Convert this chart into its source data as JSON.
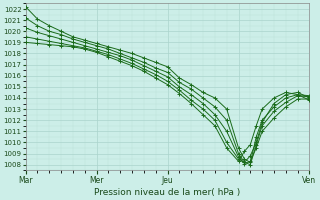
{
  "xlabel": "Pression niveau de la mer( hPa )",
  "bg_color": "#cceee8",
  "grid_color_major": "#aad4cc",
  "grid_color_minor": "#bde0d8",
  "line_color": "#1a6b1a",
  "xlim": [
    0,
    96
  ],
  "ylim": [
    1007.5,
    1022.5
  ],
  "yticks": [
    1008,
    1009,
    1010,
    1011,
    1012,
    1013,
    1014,
    1015,
    1016,
    1017,
    1018,
    1019,
    1020,
    1021,
    1022
  ],
  "xtick_positions": [
    0,
    24,
    48,
    72,
    96
  ],
  "xtick_labels": [
    "Mar",
    "Mer",
    "Jeu",
    "",
    "Ven"
  ],
  "lines": [
    [
      0,
      1022.2,
      4,
      1021.1,
      8,
      1020.5,
      12,
      1020.0,
      16,
      1019.5,
      20,
      1019.2,
      24,
      1018.9,
      28,
      1018.6,
      32,
      1018.3,
      36,
      1018.0,
      40,
      1017.6,
      44,
      1017.2,
      48,
      1016.8,
      52,
      1015.8,
      56,
      1015.2,
      60,
      1014.5,
      64,
      1014.0,
      68,
      1013.0,
      72,
      1009.5,
      74,
      1008.5,
      76,
      1008.2,
      78,
      1010.5,
      80,
      1012.0,
      84,
      1013.2,
      88,
      1014.0,
      92,
      1014.3,
      96,
      1014.2
    ],
    [
      0,
      1021.2,
      4,
      1020.5,
      8,
      1020.0,
      12,
      1019.7,
      16,
      1019.3,
      20,
      1019.0,
      24,
      1018.7,
      28,
      1018.4,
      32,
      1018.0,
      36,
      1017.6,
      40,
      1017.2,
      44,
      1016.7,
      48,
      1016.3,
      52,
      1015.4,
      56,
      1014.8,
      60,
      1014.0,
      64,
      1013.2,
      68,
      1012.0,
      72,
      1009.0,
      74,
      1008.2,
      76,
      1008.0,
      78,
      1009.8,
      80,
      1011.5,
      84,
      1012.8,
      88,
      1013.6,
      92,
      1014.2,
      96,
      1014.1
    ],
    [
      0,
      1020.3,
      4,
      1019.9,
      8,
      1019.6,
      12,
      1019.3,
      16,
      1019.0,
      20,
      1018.7,
      24,
      1018.4,
      28,
      1018.1,
      32,
      1017.8,
      36,
      1017.4,
      40,
      1016.9,
      44,
      1016.4,
      48,
      1015.9,
      52,
      1015.0,
      56,
      1014.3,
      60,
      1013.5,
      64,
      1012.5,
      68,
      1011.0,
      72,
      1008.7,
      74,
      1008.1,
      76,
      1008.3,
      78,
      1009.5,
      80,
      1011.0,
      84,
      1012.2,
      88,
      1013.2,
      92,
      1013.9,
      96,
      1013.9
    ],
    [
      0,
      1019.5,
      4,
      1019.3,
      8,
      1019.1,
      12,
      1018.9,
      16,
      1018.7,
      20,
      1018.5,
      24,
      1018.2,
      28,
      1017.9,
      32,
      1017.5,
      36,
      1017.1,
      40,
      1016.6,
      44,
      1016.1,
      48,
      1015.5,
      52,
      1014.7,
      56,
      1013.8,
      60,
      1013.0,
      64,
      1012.0,
      68,
      1010.0,
      72,
      1008.5,
      74,
      1008.2,
      76,
      1008.8,
      78,
      1010.0,
      80,
      1011.8,
      84,
      1013.5,
      88,
      1014.3,
      92,
      1014.5,
      96,
      1014.0
    ],
    [
      0,
      1019.0,
      4,
      1018.9,
      8,
      1018.8,
      12,
      1018.7,
      16,
      1018.6,
      20,
      1018.4,
      24,
      1018.1,
      28,
      1017.7,
      32,
      1017.3,
      36,
      1016.9,
      40,
      1016.4,
      44,
      1015.8,
      48,
      1015.2,
      52,
      1014.4,
      56,
      1013.5,
      60,
      1012.5,
      64,
      1011.5,
      68,
      1009.5,
      72,
      1008.3,
      74,
      1009.2,
      76,
      1009.8,
      78,
      1011.5,
      80,
      1013.0,
      84,
      1014.0,
      88,
      1014.5,
      92,
      1014.3,
      96,
      1013.8
    ]
  ]
}
